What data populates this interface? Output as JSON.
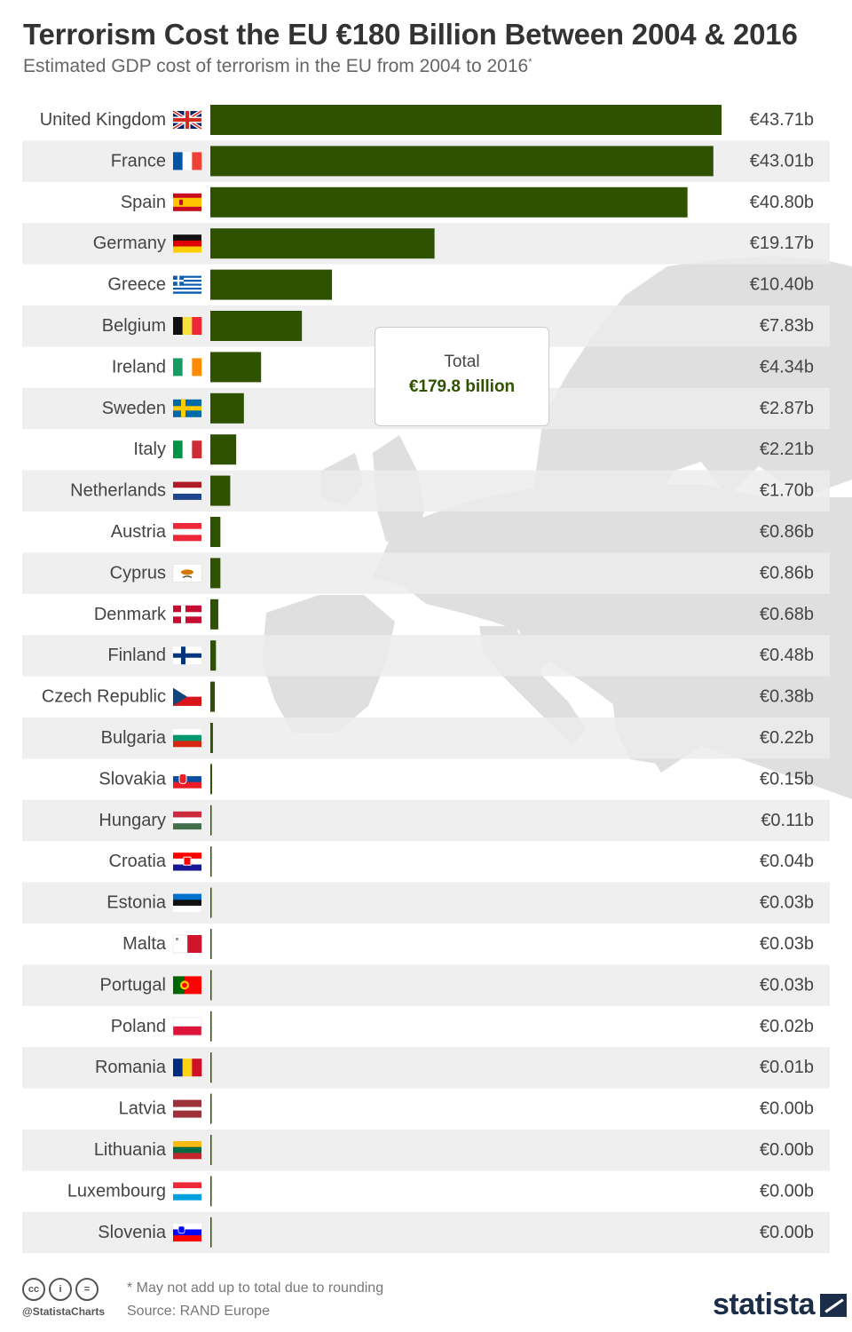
{
  "title": "Terrorism Cost the EU €180 Billion Between 2004 & 2016",
  "subtitle": "Estimated GDP cost of terrorism in the EU from 2004 to 2016",
  "subtitle_mark": "*",
  "total_box": {
    "label": "Total",
    "value": "€179.8 billion"
  },
  "footer": {
    "note": "* May not add up to total due to rounding",
    "source": "Source: RAND Europe",
    "handle": "@StatistaCharts",
    "brand": "statista"
  },
  "colors": {
    "bar": "#2f5200",
    "row_alt": "#ececec",
    "map": "#dcdcdc"
  },
  "chart_data": {
    "type": "bar",
    "orientation": "horizontal",
    "unit": "€ billion",
    "categories": [
      "United Kingdom",
      "France",
      "Spain",
      "Germany",
      "Greece",
      "Belgium",
      "Ireland",
      "Sweden",
      "Italy",
      "Netherlands",
      "Austria",
      "Cyprus",
      "Denmark",
      "Finland",
      "Czech Republic",
      "Bulgaria",
      "Slovakia",
      "Hungary",
      "Croatia",
      "Estonia",
      "Malta",
      "Portugal",
      "Poland",
      "Romania",
      "Latvia",
      "Lithuania",
      "Luxembourg",
      "Slovenia"
    ],
    "values": [
      43.71,
      43.01,
      40.8,
      19.17,
      10.4,
      7.83,
      4.34,
      2.87,
      2.21,
      1.7,
      0.86,
      0.86,
      0.68,
      0.48,
      0.38,
      0.22,
      0.15,
      0.11,
      0.04,
      0.03,
      0.03,
      0.03,
      0.02,
      0.01,
      0.0,
      0.0,
      0.0,
      0.0
    ],
    "value_labels": [
      "€43.71b",
      "€43.01b",
      "€40.80b",
      "€19.17b",
      "€10.40b",
      "€7.83b",
      "€4.34b",
      "€2.87b",
      "€2.21b",
      "€1.70b",
      "€0.86b",
      "€0.86b",
      "€0.68b",
      "€0.48b",
      "€0.38b",
      "€0.22b",
      "€0.15b",
      "€0.11b",
      "€0.04b",
      "€0.03b",
      "€0.03b",
      "€0.03b",
      "€0.02b",
      "€0.01b",
      "€0.00b",
      "€0.00b",
      "€0.00b",
      "€0.00b"
    ],
    "xlim": [
      0,
      43.71
    ],
    "grid": false,
    "legend": "none"
  }
}
